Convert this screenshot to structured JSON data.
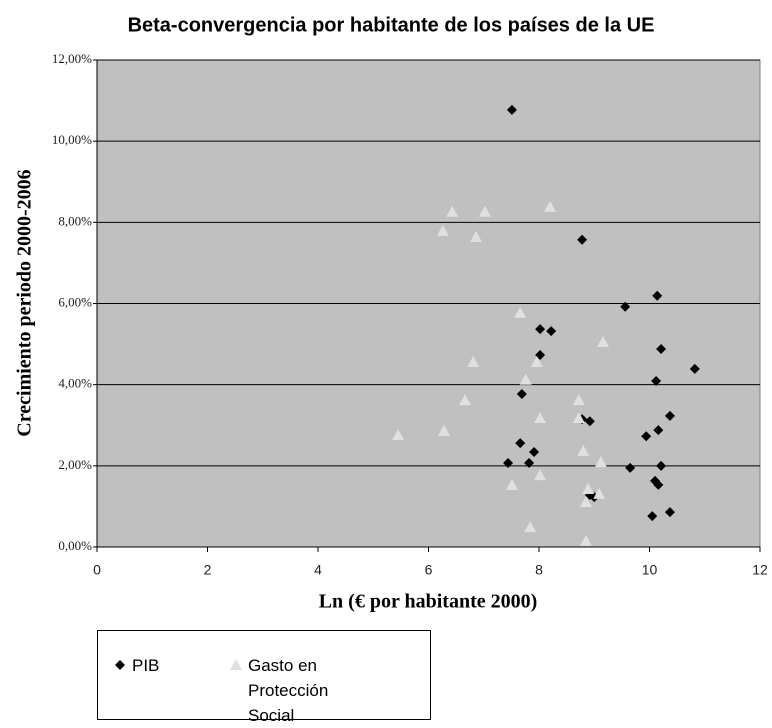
{
  "chart_data": {
    "type": "scatter",
    "title": "Beta-convergencia por habitante de los países de la UE",
    "x_label": "Ln (€ por habitante 2000)",
    "y_label": "Crecimiento periodo  2000-2006",
    "xlim": [
      0,
      12
    ],
    "xticks": [
      0,
      2,
      4,
      6,
      8,
      10,
      12
    ],
    "ylim": [
      0,
      12
    ],
    "yticks": [
      {
        "value": 0,
        "label": "0,00%"
      },
      {
        "value": 2,
        "label": "2,00%"
      },
      {
        "value": 4,
        "label": "4,00%"
      },
      {
        "value": 6,
        "label": "6,00%"
      },
      {
        "value": 8,
        "label": "8,00%"
      },
      {
        "value": 10,
        "label": "10,00%"
      },
      {
        "value": 12,
        "label": "12,00%"
      }
    ],
    "grid": true,
    "series": [
      {
        "name": "PIB",
        "color": "#000000",
        "marker": "diamond",
        "x": [
          7.51,
          8.78,
          10.14,
          9.56,
          8.02,
          8.22,
          8.02,
          10.21,
          10.82,
          10.12,
          7.69,
          8.78,
          8.92,
          10.37,
          10.16,
          9.94,
          7.66,
          7.91,
          7.44,
          7.82,
          9.65,
          10.21,
          10.1,
          10.16,
          8.92,
          9.0,
          10.37,
          10.05
        ],
        "values": [
          10.77,
          7.57,
          6.19,
          5.92,
          5.37,
          5.32,
          4.73,
          4.88,
          4.39,
          4.09,
          3.77,
          3.15,
          3.1,
          3.23,
          2.88,
          2.73,
          2.56,
          2.34,
          2.07,
          2.07,
          1.95,
          2.0,
          1.63,
          1.53,
          1.28,
          1.23,
          0.86,
          0.76
        ]
      },
      {
        "name": "Gasto en Protección Social",
        "color": "#e0e0e0",
        "marker": "triangle",
        "x": [
          6.43,
          7.02,
          8.2,
          6.26,
          6.86,
          7.66,
          9.16,
          6.81,
          7.96,
          7.76,
          6.66,
          8.72,
          8.02,
          8.72,
          5.45,
          6.28,
          8.8,
          9.12,
          8.02,
          7.51,
          8.89,
          9.09,
          8.85,
          7.84,
          8.85
        ],
        "values": [
          8.26,
          8.26,
          8.38,
          7.79,
          7.64,
          5.77,
          5.05,
          4.56,
          4.56,
          4.12,
          3.62,
          3.62,
          3.18,
          3.18,
          2.76,
          2.86,
          2.37,
          2.09,
          1.77,
          1.53,
          1.43,
          1.31,
          1.11,
          0.49,
          0.15
        ]
      }
    ]
  }
}
